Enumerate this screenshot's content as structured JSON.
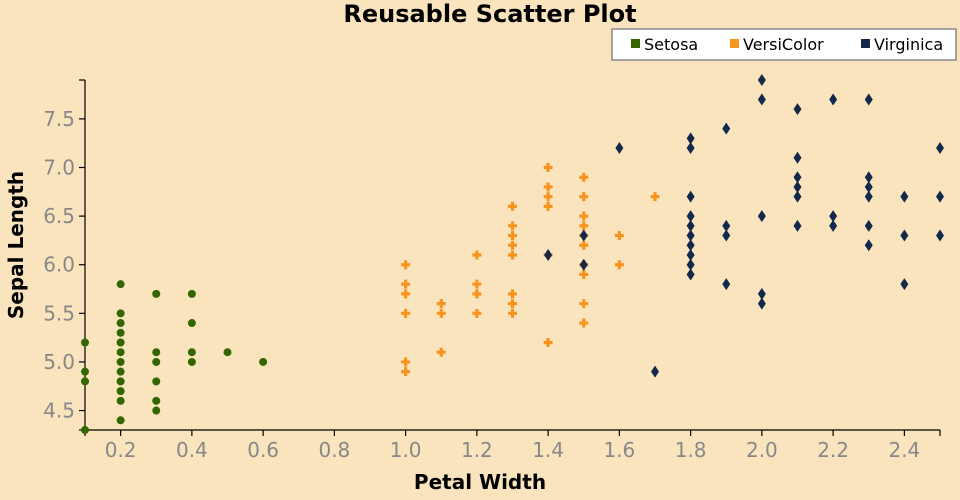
{
  "chart_data": {
    "type": "scatter",
    "title": "Reusable Scatter Plot",
    "xlabel": "Petal Width",
    "ylabel": "Sepal Length",
    "xlim": [
      0.1,
      2.5
    ],
    "ylim": [
      4.3,
      7.9
    ],
    "x_ticks": [
      "0.2",
      "0.4",
      "0.6",
      "0.8",
      "1.0",
      "1.2",
      "1.4",
      "1.6",
      "1.8",
      "2.0",
      "2.2",
      "2.4"
    ],
    "y_ticks": [
      "4.5",
      "5.0",
      "5.5",
      "6.0",
      "6.5",
      "7.0",
      "7.5"
    ],
    "grid": false,
    "legend_position": "top-right",
    "series": [
      {
        "name": "Setosa",
        "color": "#336600",
        "marker": "circle",
        "points": [
          [
            0.1,
            4.3
          ],
          [
            0.1,
            4.8
          ],
          [
            0.1,
            4.9
          ],
          [
            0.1,
            5.2
          ],
          [
            0.2,
            4.4
          ],
          [
            0.2,
            4.6
          ],
          [
            0.2,
            4.7
          ],
          [
            0.2,
            4.8
          ],
          [
            0.2,
            4.9
          ],
          [
            0.2,
            5.0
          ],
          [
            0.2,
            5.1
          ],
          [
            0.2,
            5.2
          ],
          [
            0.2,
            5.3
          ],
          [
            0.2,
            5.4
          ],
          [
            0.2,
            5.5
          ],
          [
            0.2,
            5.8
          ],
          [
            0.3,
            4.5
          ],
          [
            0.3,
            4.6
          ],
          [
            0.3,
            4.8
          ],
          [
            0.3,
            5.0
          ],
          [
            0.3,
            5.1
          ],
          [
            0.3,
            5.7
          ],
          [
            0.4,
            5.0
          ],
          [
            0.4,
            5.1
          ],
          [
            0.4,
            5.4
          ],
          [
            0.4,
            5.7
          ],
          [
            0.5,
            5.1
          ],
          [
            0.6,
            5.0
          ]
        ]
      },
      {
        "name": "VersiColor",
        "color": "#f7941e",
        "marker": "cross",
        "points": [
          [
            1.0,
            4.9
          ],
          [
            1.0,
            5.0
          ],
          [
            1.0,
            5.5
          ],
          [
            1.0,
            5.7
          ],
          [
            1.0,
            5.8
          ],
          [
            1.0,
            6.0
          ],
          [
            1.1,
            5.1
          ],
          [
            1.1,
            5.5
          ],
          [
            1.1,
            5.6
          ],
          [
            1.2,
            5.5
          ],
          [
            1.2,
            5.7
          ],
          [
            1.2,
            5.8
          ],
          [
            1.2,
            6.1
          ],
          [
            1.3,
            5.5
          ],
          [
            1.3,
            5.6
          ],
          [
            1.3,
            5.7
          ],
          [
            1.3,
            6.1
          ],
          [
            1.3,
            6.2
          ],
          [
            1.3,
            6.3
          ],
          [
            1.3,
            6.4
          ],
          [
            1.3,
            6.6
          ],
          [
            1.4,
            5.2
          ],
          [
            1.4,
            6.1
          ],
          [
            1.4,
            6.6
          ],
          [
            1.4,
            6.7
          ],
          [
            1.4,
            6.8
          ],
          [
            1.4,
            7.0
          ],
          [
            1.5,
            5.4
          ],
          [
            1.5,
            5.6
          ],
          [
            1.5,
            5.9
          ],
          [
            1.5,
            6.0
          ],
          [
            1.5,
            6.2
          ],
          [
            1.5,
            6.3
          ],
          [
            1.5,
            6.4
          ],
          [
            1.5,
            6.5
          ],
          [
            1.5,
            6.7
          ],
          [
            1.5,
            6.9
          ],
          [
            1.6,
            6.0
          ],
          [
            1.6,
            6.3
          ],
          [
            1.7,
            6.7
          ]
        ]
      },
      {
        "name": "Virginica",
        "color": "#13294b",
        "marker": "diamond",
        "points": [
          [
            1.4,
            6.1
          ],
          [
            1.5,
            6.0
          ],
          [
            1.5,
            6.3
          ],
          [
            1.6,
            7.2
          ],
          [
            1.7,
            4.9
          ],
          [
            1.8,
            5.9
          ],
          [
            1.8,
            6.0
          ],
          [
            1.8,
            6.1
          ],
          [
            1.8,
            6.2
          ],
          [
            1.8,
            6.3
          ],
          [
            1.8,
            6.4
          ],
          [
            1.8,
            6.5
          ],
          [
            1.8,
            6.7
          ],
          [
            1.8,
            7.2
          ],
          [
            1.8,
            7.3
          ],
          [
            1.9,
            5.8
          ],
          [
            1.9,
            6.3
          ],
          [
            1.9,
            6.4
          ],
          [
            1.9,
            7.4
          ],
          [
            2.0,
            5.6
          ],
          [
            2.0,
            5.7
          ],
          [
            2.0,
            6.5
          ],
          [
            2.0,
            7.7
          ],
          [
            2.0,
            7.9
          ],
          [
            2.1,
            6.4
          ],
          [
            2.1,
            6.7
          ],
          [
            2.1,
            6.8
          ],
          [
            2.1,
            6.9
          ],
          [
            2.1,
            7.1
          ],
          [
            2.1,
            7.6
          ],
          [
            2.2,
            6.4
          ],
          [
            2.2,
            6.5
          ],
          [
            2.2,
            7.7
          ],
          [
            2.3,
            6.2
          ],
          [
            2.3,
            6.4
          ],
          [
            2.3,
            6.7
          ],
          [
            2.3,
            6.8
          ],
          [
            2.3,
            6.9
          ],
          [
            2.3,
            7.7
          ],
          [
            2.4,
            5.8
          ],
          [
            2.4,
            6.3
          ],
          [
            2.4,
            6.7
          ],
          [
            2.5,
            6.3
          ],
          [
            2.5,
            6.7
          ],
          [
            2.5,
            7.2
          ]
        ]
      }
    ]
  }
}
